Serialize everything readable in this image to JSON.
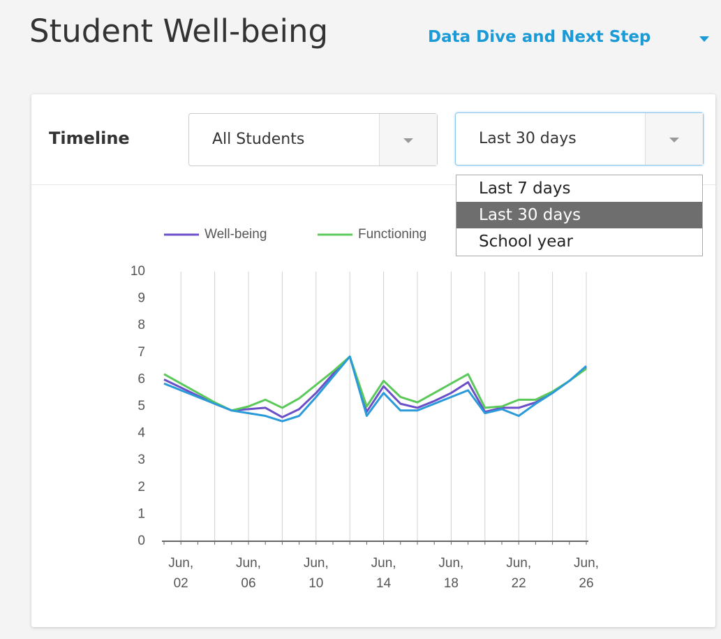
{
  "header": {
    "title": "Student Well-being",
    "link": "Data Dive and Next Step"
  },
  "filters": {
    "label": "Timeline",
    "group": "All Students",
    "period": "Last 30 days",
    "options": [
      "Last 7 days",
      "Last 30 days",
      "School year"
    ],
    "selected": 1
  },
  "chart_data": {
    "type": "line",
    "categories": [
      null,
      "Jun, 02",
      null,
      null,
      null,
      "Jun, 06",
      null,
      null,
      null,
      "Jun, 10",
      null,
      null,
      null,
      "Jun, 14",
      null,
      null,
      null,
      "Jun, 18",
      null,
      null,
      null,
      "Jun, 22",
      null,
      null,
      null,
      "Jun, 26"
    ],
    "series": [
      {
        "name": "Well-being",
        "color": "#6a4fc8",
        "values": [
          6.0,
          5.7,
          5.4,
          5.1,
          4.85,
          4.9,
          4.95,
          4.6,
          4.9,
          5.5,
          6.2,
          6.85,
          4.8,
          5.75,
          5.1,
          4.95,
          5.2,
          5.5,
          5.9,
          4.8,
          4.95,
          4.95,
          5.15,
          5.5,
          5.95,
          6.45
        ]
      },
      {
        "name": "Functioning",
        "color": "#5bc85a",
        "values": [
          6.2,
          5.85,
          5.5,
          5.15,
          4.85,
          5.0,
          5.25,
          4.95,
          5.3,
          5.8,
          6.3,
          6.85,
          5.0,
          5.95,
          5.35,
          5.15,
          5.5,
          5.85,
          6.2,
          4.95,
          5.0,
          5.25,
          5.25,
          5.55,
          5.95,
          6.4
        ]
      },
      {
        "color": "#2a9ad8",
        "values": [
          5.85,
          5.6,
          5.35,
          5.1,
          4.85,
          4.75,
          4.65,
          4.45,
          4.65,
          5.35,
          6.1,
          6.85,
          4.65,
          5.5,
          4.85,
          4.85,
          5.1,
          5.35,
          5.6,
          4.75,
          4.9,
          4.65,
          5.1,
          5.5,
          5.95,
          6.5
        ]
      }
    ],
    "ylim": [
      0,
      10
    ],
    "yticks": [
      0,
      1,
      2,
      3,
      4,
      5,
      6,
      7,
      8,
      9,
      10
    ],
    "grid": true
  }
}
